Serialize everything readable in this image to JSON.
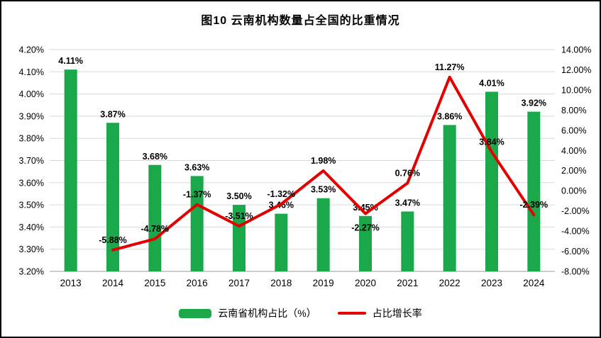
{
  "title": "图10 云南机构数量占全国的比重情况",
  "chart_data": {
    "type": "bar+line",
    "categories": [
      "2013",
      "2014",
      "2015",
      "2016",
      "2017",
      "2018",
      "2019",
      "2020",
      "2021",
      "2022",
      "2023",
      "2024"
    ],
    "series": [
      {
        "name": "云南省机构占比（%）",
        "type": "bar",
        "axis": "left",
        "color": "#1aa84a",
        "values": [
          4.11,
          3.87,
          3.68,
          3.63,
          3.5,
          3.46,
          3.53,
          3.45,
          3.47,
          3.86,
          4.01,
          3.92
        ],
        "labels": [
          "4.11%",
          "3.87%",
          "3.68%",
          "3.63%",
          "3.50%",
          "3.46%",
          "3.53%",
          "3.45%",
          "3.47%",
          "3.86%",
          "4.01%",
          "3.92%"
        ]
      },
      {
        "name": "占比增长率",
        "type": "line",
        "axis": "right",
        "color": "#e40000",
        "values": [
          null,
          -5.88,
          -4.78,
          -1.37,
          -3.51,
          -1.32,
          1.98,
          -2.27,
          0.76,
          11.27,
          3.84,
          -2.39
        ],
        "labels": [
          null,
          "-5.88%",
          "-4.78%",
          "-1.37%",
          "-3.51%",
          "-1.32%",
          "1.98%",
          "-2.27%",
          "0.76%",
          "11.27%",
          "3.84%",
          "-2.39%"
        ],
        "label_placement": [
          null,
          "above",
          "above",
          "above",
          "above",
          "above",
          "above",
          "below",
          "above",
          "above",
          "above",
          "above"
        ]
      }
    ],
    "left_axis": {
      "min": 3.2,
      "max": 4.2,
      "step": 0.1,
      "ticks": [
        "4.20%",
        "4.10%",
        "4.00%",
        "3.90%",
        "3.80%",
        "3.70%",
        "3.60%",
        "3.50%",
        "3.40%",
        "3.30%",
        "3.20%"
      ]
    },
    "right_axis": {
      "min": -8,
      "max": 14,
      "step": 2,
      "ticks": [
        "14.00%",
        "12.00%",
        "10.00%",
        "8.00%",
        "6.00%",
        "4.00%",
        "2.00%",
        "0.00%",
        "-2.00%",
        "-4.00%",
        "-6.00%",
        "-8.00%"
      ]
    },
    "grid": true,
    "legend_position": "bottom"
  }
}
